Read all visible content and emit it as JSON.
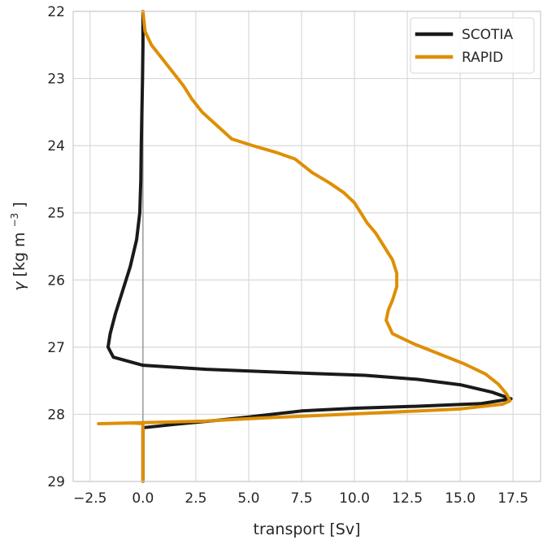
{
  "chart_data": {
    "type": "line",
    "title": "",
    "xlabel": "transport [Sv]",
    "ylabel_parts": {
      "symbol": "γ",
      "unit_open": " [kg m",
      "exponent": "−3",
      "unit_close": "]"
    },
    "xlim": [
      -3.3,
      18.8
    ],
    "ylim": [
      29,
      22
    ],
    "y_inverted": true,
    "xticks": [
      -2.5,
      0.0,
      2.5,
      5.0,
      7.5,
      10.0,
      12.5,
      15.0,
      17.5
    ],
    "xtick_labels": [
      "−2.5",
      "0.0",
      "2.5",
      "5.0",
      "7.5",
      "10.0",
      "12.5",
      "15.0",
      "17.5"
    ],
    "yticks": [
      22,
      23,
      24,
      25,
      26,
      27,
      28,
      29
    ],
    "ytick_labels": [
      "22",
      "23",
      "24",
      "25",
      "26",
      "27",
      "28",
      "29"
    ],
    "grid": true,
    "legend_position": "top-right",
    "reference_lines": [
      {
        "x": 0,
        "color": "#999999"
      }
    ],
    "series": [
      {
        "name": "SCOTIA",
        "color": "#1a1a1a",
        "points": [
          [
            0.0,
            22.0
          ],
          [
            0.0,
            22.5
          ],
          [
            -0.02,
            23.0
          ],
          [
            -0.05,
            23.5
          ],
          [
            -0.08,
            24.0
          ],
          [
            -0.1,
            24.5
          ],
          [
            -0.15,
            25.0
          ],
          [
            -0.3,
            25.4
          ],
          [
            -0.6,
            25.8
          ],
          [
            -1.0,
            26.2
          ],
          [
            -1.3,
            26.5
          ],
          [
            -1.55,
            26.8
          ],
          [
            -1.65,
            27.0
          ],
          [
            -1.4,
            27.15
          ],
          [
            0.0,
            27.27
          ],
          [
            3.0,
            27.33
          ],
          [
            7.0,
            27.38
          ],
          [
            10.5,
            27.42
          ],
          [
            13.0,
            27.48
          ],
          [
            15.0,
            27.56
          ],
          [
            16.5,
            27.67
          ],
          [
            17.4,
            27.77
          ],
          [
            16.0,
            27.84
          ],
          [
            13.0,
            27.88
          ],
          [
            10.0,
            27.91
          ],
          [
            7.5,
            27.95
          ],
          [
            5.0,
            28.04
          ],
          [
            3.5,
            28.09
          ],
          [
            1.5,
            28.15
          ],
          [
            0.0,
            28.2
          ],
          [
            0.0,
            28.5
          ],
          [
            0.0,
            29.0
          ]
        ]
      },
      {
        "name": "RAPID",
        "color": "#de8f05",
        "points": [
          [
            0.0,
            22.0
          ],
          [
            0.1,
            22.3
          ],
          [
            0.4,
            22.5
          ],
          [
            0.9,
            22.7
          ],
          [
            1.4,
            22.9
          ],
          [
            1.9,
            23.1
          ],
          [
            2.3,
            23.3
          ],
          [
            2.8,
            23.5
          ],
          [
            3.5,
            23.7
          ],
          [
            4.2,
            23.9
          ],
          [
            5.2,
            24.0
          ],
          [
            6.3,
            24.1
          ],
          [
            7.2,
            24.2
          ],
          [
            8.0,
            24.4
          ],
          [
            8.8,
            24.55
          ],
          [
            9.5,
            24.7
          ],
          [
            10.0,
            24.85
          ],
          [
            10.3,
            25.0
          ],
          [
            10.6,
            25.15
          ],
          [
            11.0,
            25.3
          ],
          [
            11.4,
            25.5
          ],
          [
            11.8,
            25.7
          ],
          [
            12.0,
            25.9
          ],
          [
            12.0,
            26.1
          ],
          [
            11.8,
            26.3
          ],
          [
            11.6,
            26.45
          ],
          [
            11.5,
            26.6
          ],
          [
            11.8,
            26.8
          ],
          [
            12.8,
            26.95
          ],
          [
            14.0,
            27.1
          ],
          [
            15.2,
            27.25
          ],
          [
            16.2,
            27.4
          ],
          [
            16.8,
            27.55
          ],
          [
            17.2,
            27.7
          ],
          [
            17.35,
            27.8
          ],
          [
            17.0,
            27.85
          ],
          [
            15.0,
            27.92
          ],
          [
            11.0,
            27.98
          ],
          [
            6.0,
            28.05
          ],
          [
            3.0,
            28.1
          ],
          [
            0.5,
            28.12
          ],
          [
            -2.1,
            28.14
          ],
          [
            -0.5,
            28.13
          ],
          [
            0.0,
            28.14
          ],
          [
            0.0,
            28.5
          ],
          [
            0.0,
            29.0
          ]
        ]
      }
    ]
  }
}
